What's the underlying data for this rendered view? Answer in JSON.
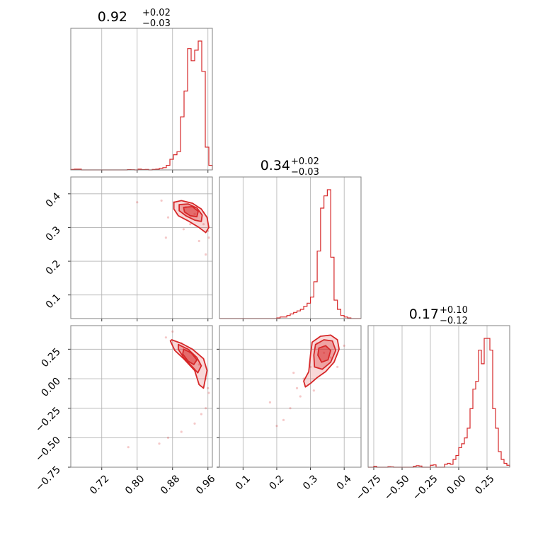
{
  "panel_titles": [
    {
      "median": "0.92",
      "plus": "+0.02",
      "minus": "−0.03"
    },
    {
      "median": "0.34",
      "plus": "+0.02",
      "minus": "−0.03"
    },
    {
      "median": "0.17",
      "plus": "+0.10",
      "minus": "−0.12"
    }
  ],
  "colors": {
    "series": "#d62728",
    "grid": "#b0b0b0",
    "frame": "#808080"
  },
  "chart_data": {
    "type": "corner",
    "parameters": 3,
    "grid": true,
    "marginals": [
      {
        "xlim": [
          0.65,
          0.97
        ],
        "bin_edges": [
          0.65,
          0.658,
          0.666,
          0.674,
          0.682,
          0.69,
          0.698,
          0.706,
          0.714,
          0.722,
          0.73,
          0.738,
          0.746,
          0.754,
          0.762,
          0.77,
          0.778,
          0.786,
          0.794,
          0.802,
          0.81,
          0.818,
          0.826,
          0.834,
          0.842,
          0.85,
          0.858,
          0.866,
          0.874,
          0.882,
          0.89,
          0.898,
          0.906,
          0.914,
          0.922,
          0.93,
          0.938,
          0.946,
          0.954,
          0.962,
          0.97
        ],
        "counts": [
          0.3,
          0.5,
          0.5,
          0,
          0,
          0,
          0,
          0,
          0,
          0,
          0,
          0,
          0,
          0,
          0,
          0,
          0.2,
          0.1,
          0,
          0.5,
          0.2,
          0.3,
          0,
          0.3,
          0.5,
          1,
          1.5,
          3,
          7,
          10,
          12,
          35,
          52,
          80,
          72,
          79,
          85,
          65,
          15,
          3
        ]
      },
      {
        "xlim": [
          0.03,
          0.45
        ],
        "bin_edges": [
          0.03,
          0.04,
          0.05,
          0.06,
          0.07,
          0.08,
          0.09,
          0.1,
          0.11,
          0.12,
          0.13,
          0.14,
          0.15,
          0.16,
          0.17,
          0.18,
          0.19,
          0.2,
          0.21,
          0.22,
          0.23,
          0.24,
          0.25,
          0.26,
          0.27,
          0.28,
          0.29,
          0.3,
          0.31,
          0.32,
          0.33,
          0.34,
          0.35,
          0.36,
          0.37,
          0.38,
          0.39,
          0.4,
          0.41,
          0.42,
          0.43,
          0.44,
          0.45
        ],
        "counts": [
          0,
          0,
          0,
          0,
          0,
          0,
          0,
          0,
          0,
          0,
          0,
          0,
          0,
          0,
          0,
          0,
          0,
          0.2,
          0.5,
          0.5,
          1,
          1.5,
          2,
          2.5,
          3,
          4,
          5,
          7,
          12,
          22,
          36,
          40,
          42,
          20,
          6,
          3,
          1,
          0.5,
          0.2,
          0,
          0,
          0
        ]
      },
      {
        "xlim": [
          -0.8,
          0.45
        ],
        "bin_edges": [
          -0.8,
          -0.775,
          -0.75,
          -0.725,
          -0.7,
          -0.675,
          -0.65,
          -0.625,
          -0.6,
          -0.575,
          -0.55,
          -0.525,
          -0.5,
          -0.475,
          -0.45,
          -0.425,
          -0.4,
          -0.375,
          -0.35,
          -0.325,
          -0.3,
          -0.275,
          -0.25,
          -0.225,
          -0.2,
          -0.175,
          -0.15,
          -0.125,
          -0.1,
          -0.075,
          -0.05,
          -0.025,
          0,
          0.025,
          0.05,
          0.075,
          0.1,
          0.125,
          0.15,
          0.175,
          0.2,
          0.225,
          0.25,
          0.275,
          0.3,
          0.325,
          0.35,
          0.375,
          0.4,
          0.425,
          0.45
        ],
        "counts": [
          0,
          0,
          0.5,
          0,
          0,
          0,
          0,
          0.3,
          0.2,
          0,
          0,
          0,
          0,
          0,
          0,
          0,
          0.5,
          0.8,
          0.6,
          0,
          0,
          0,
          1,
          1.2,
          0,
          0,
          0,
          1.5,
          2,
          1.5,
          4,
          6,
          10,
          12,
          15,
          20,
          30,
          40,
          44,
          60,
          53,
          66,
          66,
          60,
          30,
          20,
          8,
          4,
          2,
          1
        ]
      }
    ],
    "pairs": [
      {
        "x_index": 0,
        "y_index": 1,
        "xlim": [
          0.65,
          0.97
        ],
        "ylim": [
          0.03,
          0.45
        ],
        "contours": [
          [
            [
              0.883,
              0.375
            ],
            [
              0.9,
              0.38
            ],
            [
              0.925,
              0.372
            ],
            [
              0.945,
              0.355
            ],
            [
              0.958,
              0.33
            ],
            [
              0.962,
              0.3
            ],
            [
              0.955,
              0.285
            ],
            [
              0.94,
              0.3
            ],
            [
              0.915,
              0.32
            ],
            [
              0.893,
              0.335
            ],
            [
              0.883,
              0.355
            ]
          ],
          [
            [
              0.895,
              0.368
            ],
            [
              0.915,
              0.37
            ],
            [
              0.935,
              0.358
            ],
            [
              0.947,
              0.337
            ],
            [
              0.945,
              0.318
            ],
            [
              0.93,
              0.322
            ],
            [
              0.91,
              0.335
            ],
            [
              0.895,
              0.35
            ]
          ],
          [
            [
              0.905,
              0.36
            ],
            [
              0.925,
              0.362
            ],
            [
              0.938,
              0.348
            ],
            [
              0.935,
              0.332
            ],
            [
              0.92,
              0.335
            ],
            [
              0.907,
              0.346
            ]
          ]
        ],
        "points": [
          [
            0.883,
            0.375
          ],
          [
            0.91,
            0.36
          ],
          [
            0.93,
            0.34
          ],
          [
            0.95,
            0.31
          ],
          [
            0.962,
            0.27
          ],
          [
            0.955,
            0.22
          ],
          [
            0.94,
            0.26
          ],
          [
            0.92,
            0.31
          ],
          [
            0.87,
            0.33
          ],
          [
            0.855,
            0.38
          ],
          [
            0.865,
            0.27
          ],
          [
            0.8,
            0.375
          ],
          [
            0.96,
            0.29
          ],
          [
            0.905,
            0.295
          ],
          [
            0.95,
            0.345
          ]
        ]
      },
      {
        "x_index": 0,
        "y_index": 2,
        "xlim": [
          0.65,
          0.97
        ],
        "ylim": [
          -0.75,
          0.45
        ],
        "contours": [
          [
            [
              0.878,
              0.33
            ],
            [
              0.9,
              0.3
            ],
            [
              0.925,
              0.25
            ],
            [
              0.95,
              0.17
            ],
            [
              0.958,
              0.07
            ],
            [
              0.95,
              -0.08
            ],
            [
              0.94,
              -0.05
            ],
            [
              0.93,
              0.07
            ],
            [
              0.905,
              0.17
            ],
            [
              0.885,
              0.24
            ],
            [
              0.875,
              0.32
            ]
          ],
          [
            [
              0.893,
              0.29
            ],
            [
              0.915,
              0.25
            ],
            [
              0.935,
              0.18
            ],
            [
              0.945,
              0.11
            ],
            [
              0.937,
              0.05
            ],
            [
              0.925,
              0.1
            ],
            [
              0.905,
              0.18
            ],
            [
              0.893,
              0.25
            ]
          ],
          [
            [
              0.905,
              0.25
            ],
            [
              0.922,
              0.22
            ],
            [
              0.935,
              0.16
            ],
            [
              0.928,
              0.12
            ],
            [
              0.915,
              0.15
            ],
            [
              0.903,
              0.21
            ]
          ]
        ],
        "points": [
          [
            0.88,
            0.4
          ],
          [
            0.9,
            0.3
          ],
          [
            0.92,
            0.22
          ],
          [
            0.94,
            0.12
          ],
          [
            0.955,
            0.0
          ],
          [
            0.962,
            -0.12
          ],
          [
            0.955,
            -0.25
          ],
          [
            0.93,
            -0.38
          ],
          [
            0.9,
            -0.45
          ],
          [
            0.87,
            -0.5
          ],
          [
            0.85,
            -0.55
          ],
          [
            0.78,
            -0.58
          ],
          [
            0.96,
            -0.08
          ],
          [
            0.945,
            -0.3
          ],
          [
            0.865,
            0.35
          ]
        ]
      },
      {
        "x_index": 1,
        "y_index": 2,
        "xlim": [
          0.03,
          0.45
        ],
        "ylim": [
          -0.75,
          0.45
        ],
        "contours": [
          [
            [
              0.305,
              0.31
            ],
            [
              0.33,
              0.36
            ],
            [
              0.36,
              0.37
            ],
            [
              0.38,
              0.33
            ],
            [
              0.385,
              0.25
            ],
            [
              0.37,
              0.14
            ],
            [
              0.345,
              0.06
            ],
            [
              0.32,
              0.01
            ],
            [
              0.3,
              -0.04
            ],
            [
              0.285,
              -0.07
            ],
            [
              0.28,
              -0.02
            ],
            [
              0.295,
              0.06
            ],
            [
              0.3,
              0.2
            ]
          ],
          [
            [
              0.315,
              0.29
            ],
            [
              0.34,
              0.33
            ],
            [
              0.365,
              0.32
            ],
            [
              0.375,
              0.24
            ],
            [
              0.36,
              0.14
            ],
            [
              0.335,
              0.08
            ],
            [
              0.312,
              0.1
            ],
            [
              0.31,
              0.2
            ]
          ],
          [
            [
              0.325,
              0.26
            ],
            [
              0.345,
              0.28
            ],
            [
              0.36,
              0.24
            ],
            [
              0.352,
              0.16
            ],
            [
              0.333,
              0.14
            ],
            [
              0.322,
              0.2
            ]
          ]
        ],
        "points": [
          [
            0.32,
            0.3
          ],
          [
            0.34,
            0.22
          ],
          [
            0.36,
            0.18
          ],
          [
            0.3,
            0.1
          ],
          [
            0.28,
            0.0
          ],
          [
            0.26,
            -0.08
          ],
          [
            0.24,
            -0.25
          ],
          [
            0.22,
            -0.35
          ],
          [
            0.2,
            -0.4
          ],
          [
            0.18,
            -0.2
          ],
          [
            0.27,
            -0.15
          ],
          [
            0.38,
            0.1
          ],
          [
            0.4,
            0.28
          ],
          [
            0.25,
            0.05
          ],
          [
            0.31,
            -0.1
          ]
        ]
      }
    ],
    "x_tick_labels": [
      {
        "values": [
          0.72,
          0.8,
          0.88,
          0.96
        ],
        "labels": [
          "0.72",
          "0.80",
          "0.88",
          "0.96"
        ]
      },
      {
        "values": [
          0.1,
          0.2,
          0.3,
          0.4
        ],
        "labels": [
          "0.1",
          "0.2",
          "0.3",
          "0.4"
        ]
      },
      {
        "values": [
          -0.75,
          -0.5,
          -0.25,
          0.0,
          0.25
        ],
        "labels": [
          "−0.75",
          "−0.50",
          "−0.25",
          "0.00",
          "0.25"
        ]
      }
    ],
    "y_tick_labels": [
      {
        "row": 1,
        "values": [
          0.1,
          0.2,
          0.3,
          0.4
        ],
        "labels": [
          "0.1",
          "0.2",
          "0.3",
          "0.4"
        ]
      },
      {
        "row": 2,
        "values": [
          -0.75,
          -0.5,
          -0.25,
          0.0,
          0.25
        ],
        "labels": [
          "−0.75",
          "−0.50",
          "−0.25",
          "0.00",
          "0.25"
        ]
      }
    ]
  }
}
